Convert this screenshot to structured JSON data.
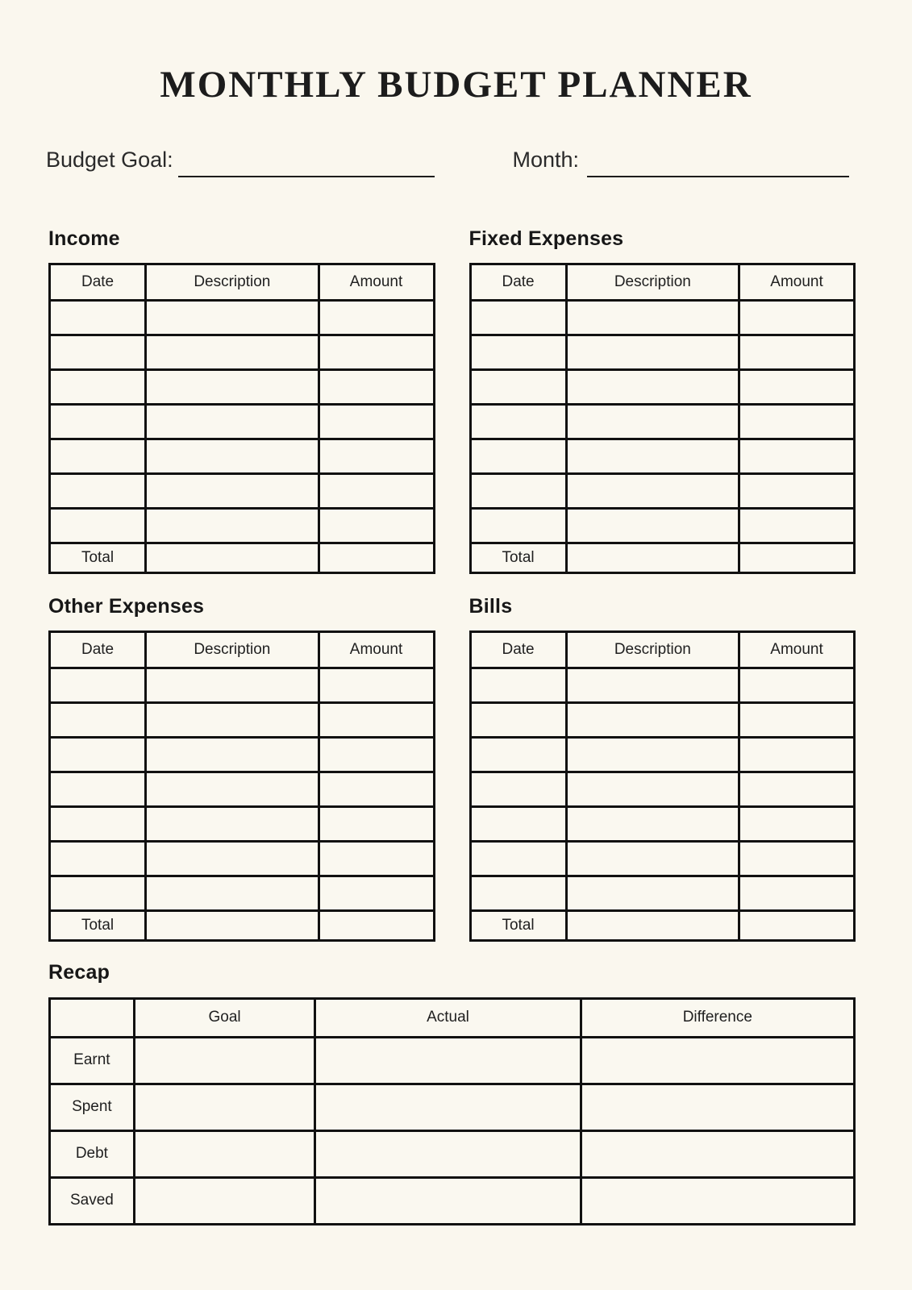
{
  "title": "MONTHLY BUDGET PLANNER",
  "colors": {
    "background": "#FAF7EE",
    "ink": "#111111"
  },
  "fields": {
    "budget_goal": {
      "label": "Budget Goal:",
      "value": ""
    },
    "month": {
      "label": "Month:",
      "value": ""
    }
  },
  "budget_tables": {
    "columns": [
      "Date",
      "Description",
      "Amount"
    ],
    "total_label": "Total",
    "empty_data_rows": 7,
    "sections": [
      {
        "title": "Income"
      },
      {
        "title": "Fixed Expenses"
      },
      {
        "title": "Other Expenses"
      },
      {
        "title": "Bills"
      }
    ]
  },
  "recap": {
    "title": "Recap",
    "columns": [
      "Goal",
      "Actual",
      "Difference"
    ],
    "row_labels": [
      "Earnt",
      "Spent",
      "Debt",
      "Saved"
    ]
  }
}
